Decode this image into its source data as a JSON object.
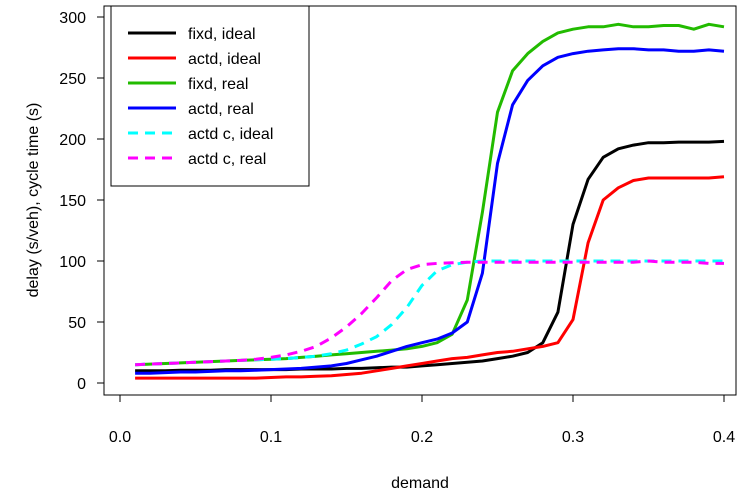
{
  "chart_data": {
    "type": "line",
    "title": "",
    "xlabel": "demand",
    "ylabel": "delay (s/veh), cycle time (s)",
    "xlim": [
      0.0,
      0.4
    ],
    "ylim": [
      0,
      300
    ],
    "xticks": [
      0.0,
      0.1,
      0.2,
      0.3,
      0.4
    ],
    "xtick_labels": [
      "0.0",
      "0.1",
      "0.2",
      "0.3",
      "0.4"
    ],
    "yticks": [
      0,
      50,
      100,
      150,
      200,
      250,
      300
    ],
    "ytick_labels": [
      "0",
      "50",
      "100",
      "150",
      "200",
      "250",
      "300"
    ],
    "grid": false,
    "legend_position": "top-left",
    "x": [
      0.01,
      0.02,
      0.03,
      0.04,
      0.05,
      0.06,
      0.07,
      0.08,
      0.09,
      0.1,
      0.11,
      0.12,
      0.13,
      0.14,
      0.15,
      0.16,
      0.17,
      0.18,
      0.19,
      0.2,
      0.21,
      0.22,
      0.23,
      0.24,
      0.25,
      0.26,
      0.27,
      0.28,
      0.29,
      0.3,
      0.31,
      0.32,
      0.33,
      0.34,
      0.35,
      0.36,
      0.37,
      0.38,
      0.39,
      0.4
    ],
    "series": [
      {
        "name": "fixd, ideal",
        "color": "#000000",
        "dash": "solid",
        "values": [
          10,
          10,
          10,
          10.5,
          10.5,
          10.5,
          11,
          11,
          11,
          11,
          11,
          11.5,
          11.5,
          11.5,
          12,
          12,
          12.5,
          13,
          13,
          14,
          15,
          16,
          17,
          18,
          20,
          22,
          25,
          33,
          58,
          130,
          167,
          185,
          192,
          195,
          197,
          197,
          197.5,
          197.5,
          197.5,
          198
        ]
      },
      {
        "name": "actd, ideal",
        "color": "#ff0000",
        "dash": "solid",
        "values": [
          4,
          4,
          4,
          4,
          4,
          4,
          4,
          4,
          4,
          4.5,
          5,
          5,
          5.5,
          6,
          7,
          8,
          10,
          12,
          14,
          16,
          18,
          20,
          21,
          23,
          25,
          26,
          28,
          30,
          33,
          52,
          115,
          150,
          160,
          166,
          168,
          168,
          168,
          168,
          168,
          169
        ]
      },
      {
        "name": "fixd, real",
        "color": "#22bb00",
        "dash": "solid",
        "values": [
          15,
          15.5,
          16,
          16.5,
          17,
          17.5,
          18,
          18.5,
          19,
          19.5,
          20,
          21,
          22,
          23,
          24,
          25,
          26,
          27,
          28,
          30,
          33,
          40,
          68,
          140,
          222,
          256,
          270,
          280,
          287,
          290,
          292,
          292,
          294,
          292,
          292,
          293,
          293,
          290,
          294,
          292
        ]
      },
      {
        "name": "actd, real",
        "color": "#0000ff",
        "dash": "solid",
        "values": [
          8,
          8,
          8.5,
          9,
          9,
          9.5,
          10,
          10,
          10.5,
          11,
          11.5,
          12,
          13,
          14,
          16,
          19,
          22,
          26,
          30,
          33,
          36,
          41,
          50,
          90,
          180,
          228,
          248,
          260,
          267,
          270,
          272,
          273,
          274,
          274,
          273,
          273,
          272,
          272,
          273,
          272
        ]
      },
      {
        "name": "actd c, ideal",
        "color": "#00ffff",
        "dash": "dashed",
        "values": [
          15,
          15.5,
          16,
          16.5,
          17,
          17.5,
          18,
          18.5,
          19,
          19.5,
          20,
          21,
          22,
          24,
          27,
          32,
          38,
          48,
          62,
          80,
          92,
          97,
          99,
          100,
          100,
          100,
          100,
          100,
          100,
          100,
          100,
          100,
          100,
          100,
          100,
          100,
          100,
          100,
          100,
          100
        ]
      },
      {
        "name": "actd c, real",
        "color": "#ff00ff",
        "dash": "dashed",
        "values": [
          15,
          15.5,
          16,
          16.5,
          17,
          17.5,
          18,
          18.5,
          19.5,
          21,
          23,
          26,
          30,
          37,
          46,
          57,
          70,
          84,
          93,
          97,
          98,
          98.5,
          99,
          99,
          99,
          99,
          99,
          99,
          99,
          99,
          99,
          99,
          99,
          99,
          100,
          99,
          99,
          99,
          98,
          98
        ]
      }
    ]
  }
}
